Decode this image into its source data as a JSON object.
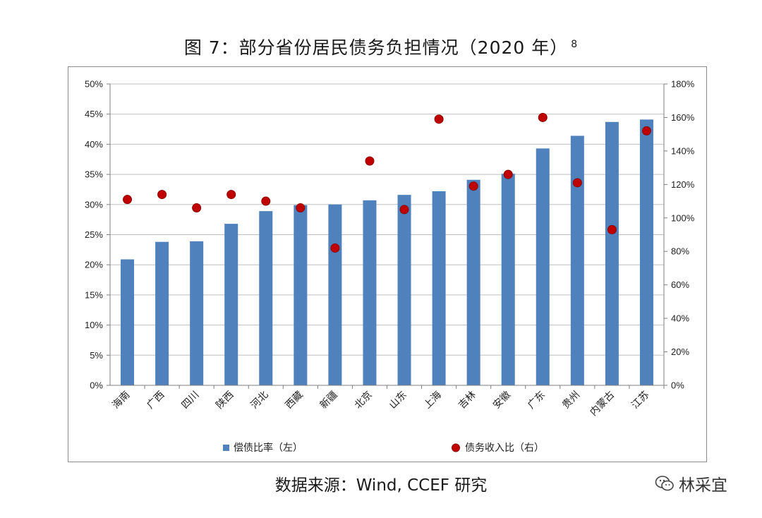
{
  "title": "图 7：部分省份居民债务负担情况（2020 年）",
  "title_footnote": "8",
  "source": "数据来源：Wind, CCEF 研究",
  "watermark": "林采宜",
  "colors": {
    "bar": "#4f81bd",
    "dot": "#c00000",
    "dot_edge": "#8b0000",
    "grid": "#bfbfbf",
    "axis": "#7f7f7f"
  },
  "chart_data": {
    "type": "bar",
    "categories": [
      "海南",
      "广西",
      "四川",
      "陕西",
      "河北",
      "西藏",
      "新疆",
      "北京",
      "山东",
      "上海",
      "吉林",
      "安徽",
      "广东",
      "贵州",
      "内蒙古",
      "江苏"
    ],
    "series": [
      {
        "name": "偿债比率（左）",
        "type": "bar",
        "axis": "left",
        "values": [
          20.9,
          23.8,
          23.9,
          26.8,
          28.9,
          29.9,
          30.0,
          30.7,
          31.6,
          32.2,
          34.1,
          35.1,
          39.3,
          41.4,
          43.7,
          44.1
        ]
      },
      {
        "name": "债务收入比（右）",
        "type": "scatter",
        "axis": "right",
        "values": [
          111,
          114,
          106,
          114,
          110,
          106,
          82,
          134,
          105,
          159,
          119,
          126,
          160,
          121,
          93,
          152
        ]
      }
    ],
    "yleft": {
      "lim": [
        0,
        50
      ],
      "step": 5,
      "ticks": [
        "0%",
        "5%",
        "10%",
        "15%",
        "20%",
        "25%",
        "30%",
        "35%",
        "40%",
        "45%",
        "50%"
      ]
    },
    "yright": {
      "lim": [
        0,
        180
      ],
      "step": 20,
      "ticks": [
        "0%",
        "20%",
        "40%",
        "60%",
        "80%",
        "100%",
        "120%",
        "140%",
        "160%",
        "180%"
      ]
    },
    "grid": true,
    "legend": "bottom"
  }
}
